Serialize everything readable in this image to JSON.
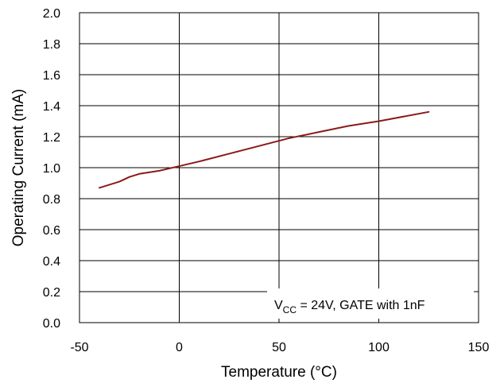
{
  "chart_data": {
    "type": "line",
    "title": "",
    "xlabel": "Temperature (°C)",
    "ylabel": "Operating Current (mA)",
    "xlim": [
      -50,
      150
    ],
    "ylim": [
      0.0,
      2.0
    ],
    "x_ticks": [
      -50,
      0,
      50,
      100,
      150
    ],
    "y_ticks": [
      0.0,
      0.2,
      0.4,
      0.6,
      0.8,
      1.0,
      1.2,
      1.4,
      1.6,
      1.8,
      2.0
    ],
    "x_tick_labels": [
      "-50",
      "0",
      "50",
      "100",
      "150"
    ],
    "y_tick_labels": [
      "0.0",
      "0.2",
      "0.4",
      "0.6",
      "0.8",
      "1.0",
      "1.2",
      "1.4",
      "1.6",
      "1.8",
      "2.0"
    ],
    "grid": true,
    "series": [
      {
        "color": "#8b1a1a",
        "x": [
          -40,
          -30,
          -25,
          -20,
          -10,
          0,
          10,
          25,
          40,
          55,
          70,
          85,
          100,
          125
        ],
        "y": [
          0.87,
          0.91,
          0.94,
          0.96,
          0.98,
          1.01,
          1.04,
          1.09,
          1.14,
          1.19,
          1.23,
          1.27,
          1.3,
          1.36
        ]
      }
    ],
    "annotation": {
      "prefix": "V",
      "subscript": "CC",
      "suffix": " = 24V, GATE with 1nF"
    }
  }
}
